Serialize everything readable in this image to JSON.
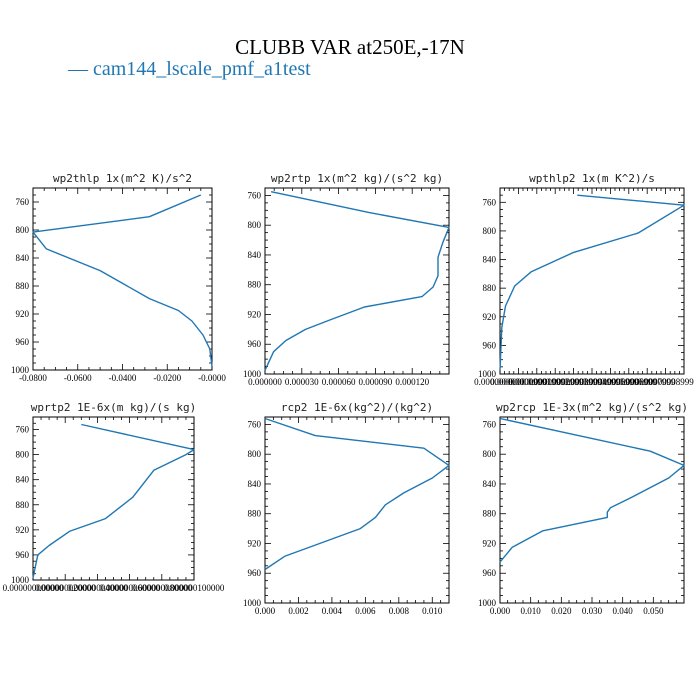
{
  "title": "CLUBB VAR at250E,-17N",
  "legend": {
    "label": "cam144_lscale_pmf_a1test",
    "color": "#1f77b4"
  },
  "chart_data": [
    {
      "type": "line",
      "title": "wp2thlp  1x(m^2 K)/s^2",
      "xlim": [
        -0.08,
        0.0
      ],
      "ylim": [
        740,
        1000
      ],
      "x_ticks": [
        -0.08,
        -0.06,
        -0.04,
        -0.02,
        0.0
      ],
      "x_tick_labels": [
        "-0.0800",
        "-0.0600",
        "-0.0400",
        "-0.0200",
        "-0.0000"
      ],
      "y_ticks": [
        760,
        800,
        840,
        880,
        920,
        960,
        1000
      ],
      "series": [
        {
          "x": [
            -0.005,
            -0.028,
            -0.08,
            -0.074,
            -0.05,
            -0.028,
            -0.015,
            -0.009,
            -0.004,
            -0.001,
            0.0
          ],
          "y": [
            750,
            781,
            803,
            827,
            858,
            898,
            915,
            930,
            950,
            970,
            995
          ]
        }
      ]
    },
    {
      "type": "line",
      "title": "wp2rtp  1x(m^2 kg)/(s^2 kg)",
      "xlim": [
        0.0,
        0.00015
      ],
      "ylim": [
        750,
        1000
      ],
      "x_ticks": [
        0.0,
        3e-05,
        6e-05,
        9e-05,
        0.00012
      ],
      "x_tick_labels": [
        "0.000000",
        "0.000030",
        "0.000060",
        "0.000090",
        "0.000120"
      ],
      "y_ticks": [
        760,
        800,
        840,
        880,
        920,
        960,
        1000
      ],
      "series": [
        {
          "x": [
            5e-06,
            8.5e-05,
            0.00015,
            0.000145,
            0.000141,
            0.000141,
            0.000137,
            0.000128,
            8.1e-05,
            5.2e-05,
            3.3e-05,
            1.7e-05,
            7e-06,
            0.0
          ],
          "y": [
            755,
            783,
            803,
            823,
            843,
            868,
            883,
            896,
            910,
            928,
            940,
            955,
            970,
            995
          ]
        }
      ]
    },
    {
      "type": "line",
      "title": "wpthlp2  1x(m K^2)/s",
      "xlim": [
        0.0,
        1e-07
      ],
      "ylim": [
        740,
        1000
      ],
      "x_ticks": [
        0.0,
        1e-08,
        2e-08,
        3e-08,
        4e-08,
        5e-08,
        6e-08,
        7e-08,
        8e-08,
        9e-08
      ],
      "x_tick_labels": [
        "0.0000000000",
        "0.00000000999",
        "0.00000001999",
        "0.00000002999",
        "0.00000003999",
        "0.00000004999",
        "0.00000005999",
        "0.00000006999",
        "0.00000007999",
        "0.00000008999"
      ],
      "y_ticks": [
        760,
        800,
        840,
        880,
        920,
        960,
        1000
      ],
      "series": [
        {
          "x": [
            4.2e-08,
            1e-07,
            7.5e-08,
            4e-08,
            1.7e-08,
            8e-09,
            3e-09,
            1e-09,
            0.0
          ],
          "y": [
            750,
            764,
            803,
            830,
            857,
            877,
            905,
            935,
            995
          ]
        }
      ]
    },
    {
      "type": "line",
      "title": "wprtp2  1E-6x(m kg)/(s kg)",
      "xlim": [
        0.0,
        1e-07
      ],
      "ylim": [
        740,
        1000
      ],
      "x_ticks": [
        0.0,
        2e-08,
        4e-08,
        6e-08,
        8e-08,
        1e-07
      ],
      "x_tick_labels": [
        "0.000000000000",
        "0.000000020000",
        "0.000000040000",
        "0.000000060000",
        "0.000000080000",
        "0.000000100000"
      ],
      "y_ticks": [
        760,
        800,
        840,
        880,
        920,
        960,
        1000
      ],
      "series": [
        {
          "x": [
            3e-08,
            1e-07,
            9.5e-08,
            7.5e-08,
            6.2e-08,
            4.5e-08,
            2.3e-08,
            1e-08,
            3e-09,
            0.0
          ],
          "y": [
            752,
            792,
            800,
            825,
            868,
            902,
            922,
            945,
            960,
            997
          ]
        }
      ]
    },
    {
      "type": "line",
      "title": "rcp2  1E-6x(kg^2)/(kg^2)",
      "xlim": [
        0.0,
        0.011
      ],
      "ylim": [
        750,
        1000
      ],
      "x_ticks": [
        0.0,
        0.002,
        0.004,
        0.006,
        0.008,
        0.01
      ],
      "x_tick_labels": [
        "0.000",
        "0.002",
        "0.004",
        "0.006",
        "0.008",
        "0.010"
      ],
      "y_ticks": [
        760,
        800,
        840,
        880,
        920,
        960,
        1000
      ],
      "series": [
        {
          "x": [
            0.0,
            0.003,
            0.0095,
            0.011,
            0.01,
            0.0083,
            0.0072,
            0.0066,
            0.0057,
            0.0012,
            0.0
          ],
          "y": [
            752,
            775,
            792,
            815,
            832,
            852,
            868,
            885,
            900,
            937,
            955
          ]
        }
      ]
    },
    {
      "type": "line",
      "title": "wp2rcp  1E-3x(m^2 kg)/(s^2 kg)",
      "xlim": [
        0.0,
        0.06
      ],
      "ylim": [
        750,
        1000
      ],
      "x_ticks": [
        0.0,
        0.01,
        0.02,
        0.03,
        0.04,
        0.05
      ],
      "x_tick_labels": [
        "0.000",
        "0.010",
        "0.020",
        "0.030",
        "0.040",
        "0.050"
      ],
      "y_ticks": [
        760,
        800,
        840,
        880,
        920,
        960,
        1000
      ],
      "series": [
        {
          "x": [
            0.0,
            0.049,
            0.06,
            0.055,
            0.042,
            0.036,
            0.035,
            0.035,
            0.014,
            0.004,
            0.0
          ],
          "y": [
            752,
            796,
            815,
            832,
            860,
            872,
            878,
            885,
            903,
            925,
            945
          ]
        }
      ]
    }
  ]
}
